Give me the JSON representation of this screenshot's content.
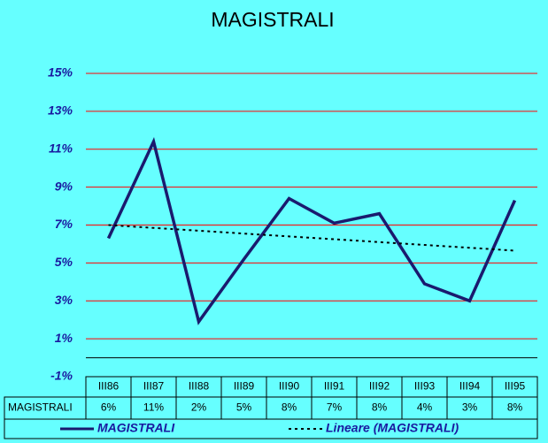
{
  "chart_data": {
    "type": "line",
    "title": "MAGISTRALI",
    "categories": [
      "III86",
      "III87",
      "III88",
      "III89",
      "III90",
      "III91",
      "III92",
      "III93",
      "III94",
      "III95"
    ],
    "series": [
      {
        "name": "MAGISTRALI",
        "color": "#1a1a6e",
        "dashed": false,
        "values": [
          6.3,
          11.4,
          1.9,
          5.2,
          8.4,
          7.1,
          7.6,
          3.9,
          3.0,
          8.3
        ],
        "value_labels": [
          "6%",
          "11%",
          "2%",
          "5%",
          "8%",
          "7%",
          "8%",
          "4%",
          "3%",
          "8%"
        ]
      },
      {
        "name": "Lineare (MAGISTRALI)",
        "color": "#000000",
        "dashed": true,
        "values": [
          7.0,
          6.85,
          6.7,
          6.55,
          6.4,
          6.25,
          6.1,
          5.95,
          5.8,
          5.65
        ]
      }
    ],
    "ylim": [
      -1,
      15
    ],
    "yticks": [
      {
        "value": -1,
        "label": "-1%"
      },
      {
        "value": 1,
        "label": "1%"
      },
      {
        "value": 3,
        "label": "3%"
      },
      {
        "value": 5,
        "label": "5%"
      },
      {
        "value": 7,
        "label": "7%"
      },
      {
        "value": 9,
        "label": "9%"
      },
      {
        "value": 11,
        "label": "11%"
      },
      {
        "value": 13,
        "label": "13%"
      },
      {
        "value": 15,
        "label": "15%"
      }
    ],
    "grid": true,
    "grid_color": "#ff0000"
  }
}
